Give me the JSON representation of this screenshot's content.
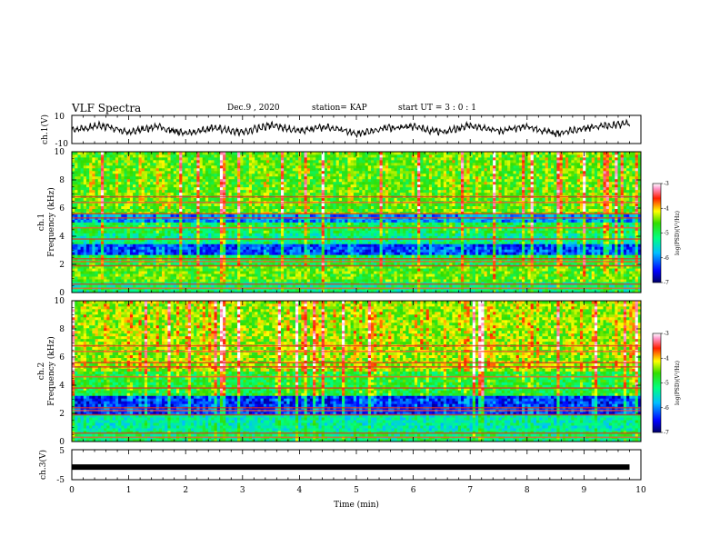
{
  "header": {
    "title": "VLF Spectra",
    "date": "Dec.9 , 2020",
    "station": "station= KAP",
    "start_ut": "start UT = 3 : 0 : 1"
  },
  "chart_data": [
    {
      "type": "line",
      "panel": "ch1-waveform",
      "ylabel": "ch.1(V)",
      "ylim": [
        -10,
        10
      ],
      "y_ticks": [
        "10",
        "-10"
      ],
      "xlim": [
        0,
        10
      ],
      "description_values": "noisy voltage trace oscillating roughly between -6 and 6 V for 0–9.8 min",
      "x": [
        0,
        0.5,
        1,
        1.5,
        2,
        2.5,
        3,
        3.5,
        4,
        4.5,
        5,
        5.5,
        6,
        6.5,
        7,
        7.5,
        8,
        8.5,
        9,
        9.5,
        9.8
      ],
      "y": [
        -1,
        3,
        -2,
        2,
        -3,
        1,
        -2,
        3,
        -1,
        2,
        -3,
        1,
        2,
        -2,
        3,
        -1,
        2,
        -3,
        1,
        3,
        4
      ]
    },
    {
      "type": "heatmap",
      "panel": "ch1-spectrogram",
      "ylabel": "ch.1 Frequency (kHz)",
      "y_ticks": [
        "0",
        "2",
        "4",
        "6",
        "8",
        "10"
      ],
      "ylim": [
        0,
        10
      ],
      "xlim": [
        0,
        10
      ],
      "colorbar": {
        "label": "log(PSD)(V²/Hz)",
        "ticks": [
          "-3",
          "-4",
          "-5",
          "-6",
          "-7"
        ],
        "range": [
          -7,
          -3
        ]
      },
      "bands_khz": [
        {
          "from": 0,
          "to": 0.8,
          "level": -5.2
        },
        {
          "from": 0.8,
          "to": 2.0,
          "level": -4.6
        },
        {
          "from": 2.0,
          "to": 2.6,
          "level": -5.0
        },
        {
          "from": 2.6,
          "to": 3.4,
          "level": -6.3
        },
        {
          "from": 3.4,
          "to": 4.2,
          "level": -5.3
        },
        {
          "from": 4.2,
          "to": 5.0,
          "level": -5.0
        },
        {
          "from": 5.0,
          "to": 5.6,
          "level": -6.0
        },
        {
          "from": 5.6,
          "to": 10.0,
          "level": -4.6
        }
      ]
    },
    {
      "type": "heatmap",
      "panel": "ch2-spectrogram",
      "ylabel": "ch.2 Frequency (kHz)",
      "y_ticks": [
        "0",
        "2",
        "4",
        "6",
        "8",
        "10"
      ],
      "ylim": [
        0,
        10
      ],
      "xlim": [
        0,
        10
      ],
      "colorbar": {
        "label": "log(PSD)(V²/Hz)",
        "ticks": [
          "-3",
          "-4",
          "-5",
          "-6",
          "-7"
        ],
        "range": [
          -7,
          -3
        ]
      },
      "bands_khz": [
        {
          "from": 0,
          "to": 0.7,
          "level": -5.1
        },
        {
          "from": 0.7,
          "to": 2.0,
          "level": -5.4
        },
        {
          "from": 2.0,
          "to": 3.2,
          "level": -6.4
        },
        {
          "from": 3.2,
          "to": 5.0,
          "level": -4.9
        },
        {
          "from": 5.0,
          "to": 10.0,
          "level": -4.4
        }
      ]
    },
    {
      "type": "line",
      "panel": "ch3-waveform",
      "ylabel": "ch.3(V)",
      "ylim": [
        -5,
        5
      ],
      "y_ticks": [
        "5",
        "-5"
      ],
      "xlim": [
        0,
        10
      ],
      "x": [
        0,
        9.8
      ],
      "y": [
        -0.8,
        -0.8
      ]
    }
  ],
  "xaxis": {
    "label": "Time (min)",
    "ticks": [
      "0",
      "1",
      "2",
      "3",
      "4",
      "5",
      "6",
      "7",
      "8",
      "9",
      "10"
    ]
  }
}
